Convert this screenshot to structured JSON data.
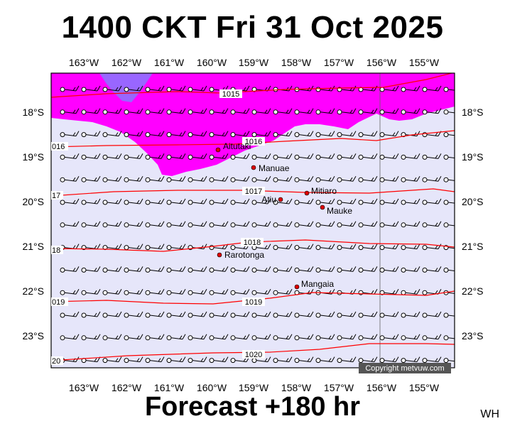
{
  "title": "1400 CKT Fri 31 Oct 2025",
  "footer": "Forecast +180 hr",
  "credit": "WH",
  "copyright": "Copyright metvuw.com",
  "lon_labels": [
    "163°W",
    "162°W",
    "161°W",
    "160°W",
    "159°W",
    "158°W",
    "157°W",
    "156°W",
    "155°W"
  ],
  "lat_labels": [
    "18°S",
    "19°S",
    "20°S",
    "21°S",
    "22°S",
    "23°S"
  ],
  "isobars": [
    {
      "value": 1015,
      "label": "1015"
    },
    {
      "value": 1016,
      "label": "1016",
      "edge_label": "016"
    },
    {
      "value": 1017,
      "label": "1017",
      "edge_label": "17"
    },
    {
      "value": 1018,
      "label": "1018",
      "edge_label": "18"
    },
    {
      "value": 1019,
      "label": "1019",
      "edge_label": "019"
    },
    {
      "value": 1020,
      "label": "1020",
      "edge_label": "20"
    }
  ],
  "islands": [
    {
      "name": "Aitutaki"
    },
    {
      "name": "Manuae"
    },
    {
      "name": "Mitiaro"
    },
    {
      "name": "Atiu"
    },
    {
      "name": "Mauke"
    },
    {
      "name": "Rarotonga"
    },
    {
      "name": "Mangaia"
    }
  ],
  "colors": {
    "background": "#e6e6fa",
    "rain_light": "#ff00ff",
    "rain_heavy": "#9966ff",
    "isobar": "#ff0000",
    "island": "#dd0000"
  }
}
